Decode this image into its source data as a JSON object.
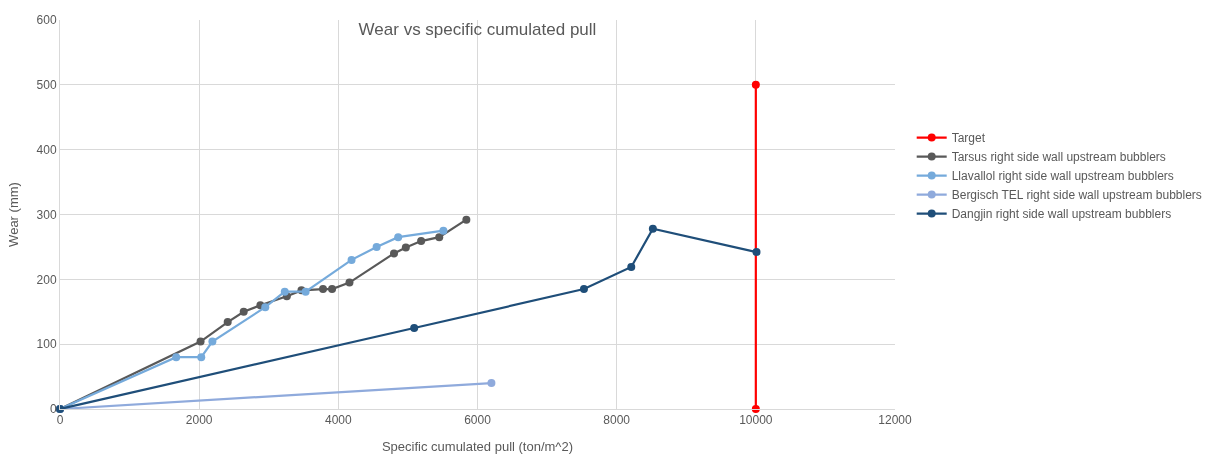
{
  "chart_data": {
    "type": "line",
    "title": "Wear vs specific cumulated pull",
    "xlabel": "Specific cumulated pull (ton/m^2)",
    "ylabel": "Wear (mm)",
    "xlim": [
      0,
      12000
    ],
    "xticks": [
      0,
      2000,
      4000,
      6000,
      8000,
      10000,
      12000
    ],
    "ylim": [
      0,
      600
    ],
    "yticks": [
      0,
      100,
      200,
      300,
      400,
      500,
      600
    ],
    "grid": true,
    "legend": "right",
    "marker": "circle",
    "line_style": "solid",
    "series": [
      {
        "name": "Target",
        "color": "#ff0000",
        "x": [
          10000,
          10000
        ],
        "values": [
          0,
          500
        ]
      },
      {
        "name": "Tarsus right side wall upstream bubblers",
        "color": "#595959",
        "x": [
          0,
          2020,
          2410,
          2640,
          2880,
          3260,
          3470,
          3780,
          3910,
          4160,
          4800,
          4970,
          5190,
          5450,
          5840
        ],
        "values": [
          0,
          104,
          134,
          150,
          160,
          174,
          183,
          185,
          185,
          195,
          240,
          249,
          259,
          265,
          292
        ]
      },
      {
        "name": "Llavallol right side wall upstream bubblers",
        "color": "#75aadb",
        "x": [
          0,
          1670,
          2030,
          2190,
          2950,
          3230,
          3530,
          4190,
          4550,
          4860,
          5510
        ],
        "values": [
          0,
          80,
          80,
          104,
          157,
          181,
          181,
          230,
          250,
          265,
          275
        ]
      },
      {
        "name": "Bergisch TEL right side wall upstream bubblers",
        "color": "#8faadc",
        "x": [
          0,
          6200
        ],
        "values": [
          0,
          40
        ]
      },
      {
        "name": "Dangjin right side wall upstream bubblers",
        "color": "#1f4e79",
        "x": [
          0,
          5090,
          7530,
          8210,
          8520,
          10010
        ],
        "values": [
          0,
          125,
          185,
          219,
          278,
          242
        ]
      }
    ]
  }
}
